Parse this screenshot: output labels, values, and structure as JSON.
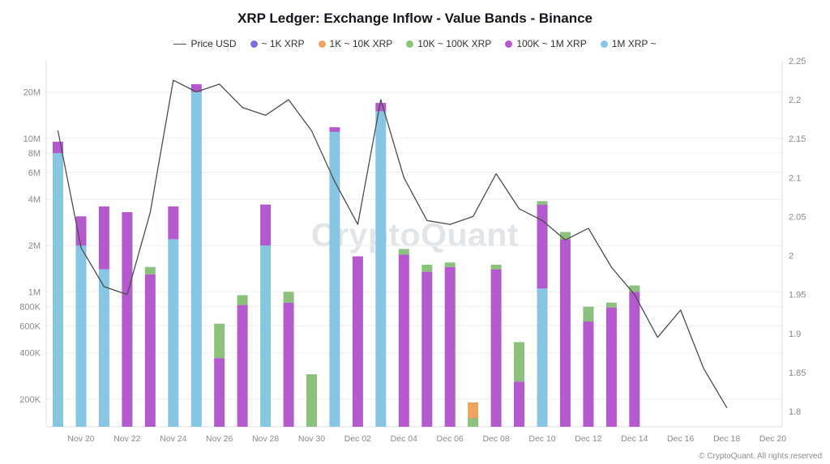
{
  "branding": {
    "watermark": "CryptoQuant",
    "copyright": "© CryptoQuant. All rights reserved"
  },
  "chart_data": {
    "type": "bar",
    "variant": "log-stacked-bars-with-price-line",
    "title": "XRP Ledger: Exchange Inflow - Value Bands - Binance",
    "legend": [
      {
        "label": "Price USD",
        "type": "line",
        "color": "#4d4d4d"
      },
      {
        "label": "~ 1K XRP",
        "type": "dot",
        "color": "#7a6fe0"
      },
      {
        "label": "1K ~ 10K XRP",
        "type": "dot",
        "color": "#f0a25f"
      },
      {
        "label": "10K ~ 100K XRP",
        "type": "dot",
        "color": "#8bc17c"
      },
      {
        "label": "100K ~ 1M XRP",
        "type": "dot",
        "color": "#b459ce"
      },
      {
        "label": "1M XRP ~",
        "type": "dot",
        "color": "#86c5e3"
      }
    ],
    "left_axis": {
      "scale": "log",
      "unit": "XRP",
      "min": 132000,
      "max": 32000000,
      "ticks": [
        "20M",
        "10M",
        "8M",
        "6M",
        "4M",
        "2M",
        "1M",
        "800K",
        "600K",
        "400K",
        "200K"
      ],
      "tick_values": [
        20000000,
        10000000,
        8000000,
        6000000,
        4000000,
        2000000,
        1000000,
        800000,
        600000,
        400000,
        200000
      ]
    },
    "right_axis": {
      "scale": "linear",
      "unit": "USD",
      "min": 1.8,
      "max": 2.25,
      "tick_labels": [
        "2.25",
        "2.2",
        "2.15",
        "2.1",
        "2.05",
        "2",
        "1.95",
        "1.9",
        "1.85",
        "1.8"
      ],
      "tick_values": [
        2.25,
        2.2,
        2.15,
        2.1,
        2.05,
        2,
        1.95,
        1.9,
        1.85,
        1.8
      ]
    },
    "x_ticks": [
      {
        "label": "Nov 20",
        "index": 1
      },
      {
        "label": "Nov 22",
        "index": 3
      },
      {
        "label": "Nov 24",
        "index": 5
      },
      {
        "label": "Nov 26",
        "index": 7
      },
      {
        "label": "Nov 28",
        "index": 9
      },
      {
        "label": "Nov 30",
        "index": 11
      },
      {
        "label": "Dec 02",
        "index": 13
      },
      {
        "label": "Dec 04",
        "index": 15
      },
      {
        "label": "Dec 06",
        "index": 17
      },
      {
        "label": "Dec 08",
        "index": 19
      },
      {
        "label": "Dec 10",
        "index": 21
      },
      {
        "label": "Dec 12",
        "index": 23
      },
      {
        "label": "Dec 14",
        "index": 25
      },
      {
        "label": "Dec 16",
        "index": 27
      },
      {
        "label": "Dec 18",
        "index": 29
      },
      {
        "label": "Dec 20",
        "index": 31
      }
    ],
    "bands": {
      "labels": [
        "1M XRP ~",
        "100K ~ 1M XRP",
        "10K ~ 100K XRP",
        "1K ~ 10K XRP",
        "~ 1K XRP"
      ],
      "ids": [
        "1m-plus",
        "100k-1m",
        "10k-100k",
        "1k-10k",
        "under-1k"
      ],
      "colors": [
        "#86c5e3",
        "#b459ce",
        "#8bc17c",
        "#f0a25f",
        "#7a6fe0"
      ]
    },
    "bars": [
      {
        "date": "Nov 19",
        "index": 0,
        "segments": [
          8000000,
          1500000,
          0,
          0,
          0
        ]
      },
      {
        "date": "Nov 20",
        "index": 1,
        "segments": [
          2000000,
          1100000,
          0,
          0,
          0
        ]
      },
      {
        "date": "Nov 21",
        "index": 2,
        "segments": [
          1400000,
          2200000,
          0,
          0,
          0
        ]
      },
      {
        "date": "Nov 22",
        "index": 3,
        "segments": [
          0,
          3300000,
          0,
          0,
          0
        ]
      },
      {
        "date": "Nov 23",
        "index": 4,
        "segments": [
          0,
          1300000,
          150000,
          0,
          0
        ]
      },
      {
        "date": "Nov 24",
        "index": 5,
        "segments": [
          2200000,
          1400000,
          0,
          0,
          0
        ]
      },
      {
        "date": "Nov 25",
        "index": 6,
        "segments": [
          20000000,
          2500000,
          0,
          0,
          0
        ]
      },
      {
        "date": "Nov 26",
        "index": 7,
        "segments": [
          0,
          370000,
          250000,
          0,
          0
        ]
      },
      {
        "date": "Nov 27",
        "index": 8,
        "segments": [
          0,
          820000,
          130000,
          0,
          0
        ]
      },
      {
        "date": "Nov 28",
        "index": 9,
        "segments": [
          2000000,
          1700000,
          0,
          0,
          0
        ]
      },
      {
        "date": "Nov 29",
        "index": 10,
        "segments": [
          0,
          850000,
          150000,
          0,
          0
        ]
      },
      {
        "date": "Nov 30",
        "index": 11,
        "segments": [
          0,
          0,
          290000,
          0,
          0
        ]
      },
      {
        "date": "Dec 01",
        "index": 12,
        "segments": [
          11000000,
          800000,
          0,
          0,
          0
        ]
      },
      {
        "date": "Dec 02",
        "index": 13,
        "segments": [
          0,
          1700000,
          0,
          0,
          0
        ]
      },
      {
        "date": "Dec 03",
        "index": 14,
        "segments": [
          15000000,
          2000000,
          0,
          0,
          0
        ]
      },
      {
        "date": "Dec 04",
        "index": 15,
        "segments": [
          0,
          1750000,
          150000,
          0,
          0
        ]
      },
      {
        "date": "Dec 05",
        "index": 16,
        "segments": [
          0,
          1350000,
          150000,
          0,
          0
        ]
      },
      {
        "date": "Dec 06",
        "index": 17,
        "segments": [
          0,
          1450000,
          100000,
          0,
          0
        ]
      },
      {
        "date": "Dec 07",
        "index": 18,
        "segments": [
          0,
          0,
          150000,
          40000,
          0
        ]
      },
      {
        "date": "Dec 08",
        "index": 19,
        "segments": [
          0,
          1400000,
          100000,
          0,
          0
        ]
      },
      {
        "date": "Dec 09",
        "index": 20,
        "segments": [
          0,
          260000,
          210000,
          0,
          0
        ]
      },
      {
        "date": "Dec 10",
        "index": 21,
        "segments": [
          1050000,
          2650000,
          200000,
          0,
          0
        ]
      },
      {
        "date": "Dec 11",
        "index": 22,
        "segments": [
          0,
          2200000,
          250000,
          0,
          0
        ]
      },
      {
        "date": "Dec 12",
        "index": 23,
        "segments": [
          0,
          640000,
          160000,
          0,
          0
        ]
      },
      {
        "date": "Dec 13",
        "index": 24,
        "segments": [
          0,
          790000,
          60000,
          0,
          0
        ]
      },
      {
        "date": "Dec 14",
        "index": 25,
        "segments": [
          0,
          1000000,
          100000,
          0,
          0
        ]
      }
    ],
    "price_line": {
      "label": "Price USD",
      "color": "#4d4d4d",
      "start_index": 0,
      "dates": [
        "Nov 19",
        "Nov 20",
        "Nov 21",
        "Nov 22",
        "Nov 23",
        "Nov 24",
        "Nov 25",
        "Nov 26",
        "Nov 27",
        "Nov 28",
        "Nov 29",
        "Nov 30",
        "Dec 01",
        "Dec 02",
        "Dec 03",
        "Dec 04",
        "Dec 05",
        "Dec 06",
        "Dec 07",
        "Dec 08",
        "Dec 09",
        "Dec 10",
        "Dec 11",
        "Dec 12",
        "Dec 13",
        "Dec 14",
        "Dec 15",
        "Dec 16",
        "Dec 17",
        "Dec 18"
      ],
      "values": [
        2.16,
        2.01,
        1.96,
        1.95,
        2.055,
        2.225,
        2.21,
        2.22,
        2.19,
        2.18,
        2.2,
        2.16,
        2.095,
        2.04,
        2.2,
        2.1,
        2.045,
        2.04,
        2.05,
        2.105,
        2.06,
        2.045,
        2.02,
        2.035,
        1.985,
        1.95,
        1.895,
        1.93,
        1.855,
        1.805
      ]
    }
  }
}
